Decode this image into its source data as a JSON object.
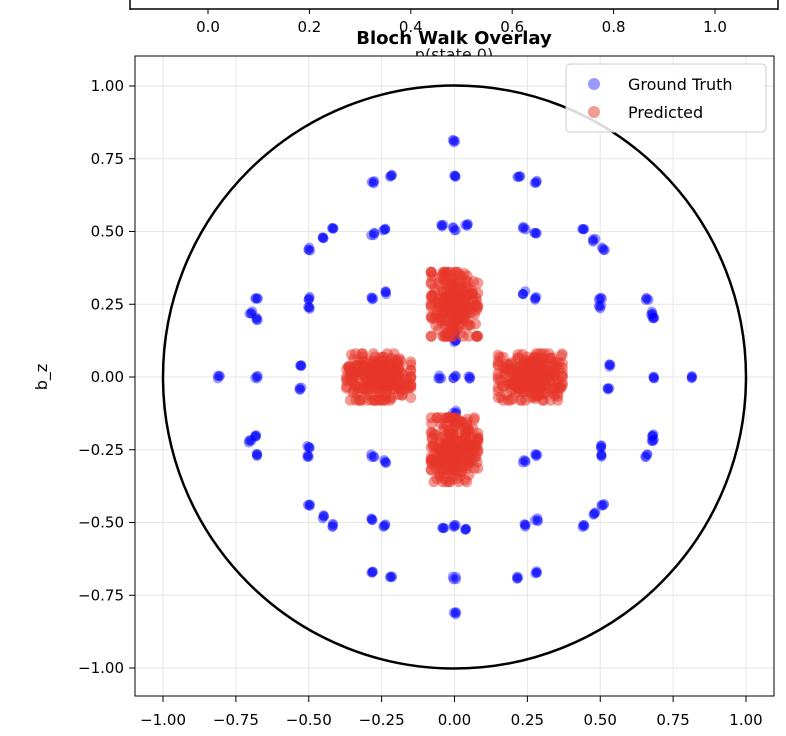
{
  "top_strip": {
    "tick_labels": [
      "0.0",
      "0.2",
      "0.4",
      "0.6",
      "0.8",
      "1.0"
    ],
    "xlabel": "p(state 0)"
  },
  "chart_data": {
    "type": "scatter",
    "title": "Bloch Walk Overlay",
    "xlabel": "",
    "ylabel": "b_z",
    "xlim": [
      -1.1,
      1.1
    ],
    "ylim": [
      -1.1,
      1.1
    ],
    "x_ticks": [
      "−1.00",
      "−0.75",
      "−0.50",
      "−0.25",
      "0.00",
      "0.25",
      "0.50",
      "0.75",
      "1.00"
    ],
    "y_ticks": [
      "1.00",
      "0.75",
      "0.50",
      "0.25",
      "0.00",
      "−0.25",
      "−0.50",
      "−0.75",
      "−1.00"
    ],
    "grid": true,
    "legend_position": "top-right",
    "unit_circle": {
      "center": [
        0,
        0
      ],
      "radius": 1.0,
      "color": "#000000"
    },
    "series": [
      {
        "name": "Ground Truth",
        "color": "#0000ff",
        "alpha": 0.4,
        "points": [
          [
            0.0,
            0.81
          ],
          [
            0.0,
            0.69
          ],
          [
            -0.28,
            0.67
          ],
          [
            -0.22,
            0.69
          ],
          [
            0.22,
            0.69
          ],
          [
            0.28,
            0.67
          ],
          [
            -0.5,
            0.44
          ],
          [
            -0.45,
            0.48
          ],
          [
            -0.42,
            0.51
          ],
          [
            0.44,
            0.51
          ],
          [
            0.48,
            0.47
          ],
          [
            0.51,
            0.44
          ],
          [
            -0.28,
            0.49
          ],
          [
            -0.24,
            0.51
          ],
          [
            0.24,
            0.51
          ],
          [
            0.28,
            0.49
          ],
          [
            -0.04,
            0.52
          ],
          [
            0.0,
            0.51
          ],
          [
            0.04,
            0.52
          ],
          [
            -0.68,
            0.27
          ],
          [
            -0.7,
            0.22
          ],
          [
            -0.68,
            0.2
          ],
          [
            -0.5,
            0.27
          ],
          [
            -0.5,
            0.24
          ],
          [
            -0.28,
            0.27
          ],
          [
            -0.24,
            0.29
          ],
          [
            0.24,
            0.29
          ],
          [
            0.28,
            0.27
          ],
          [
            0.5,
            0.27
          ],
          [
            0.5,
            0.24
          ],
          [
            0.66,
            0.27
          ],
          [
            0.68,
            0.22
          ],
          [
            0.68,
            0.2
          ],
          [
            0.0,
            0.15
          ],
          [
            0.0,
            0.12
          ],
          [
            -0.81,
            0.0
          ],
          [
            -0.68,
            0.0
          ],
          [
            -0.53,
            0.04
          ],
          [
            -0.53,
            -0.04
          ],
          [
            -0.05,
            0.0
          ],
          [
            0.0,
            0.0
          ],
          [
            0.05,
            0.0
          ],
          [
            0.53,
            0.04
          ],
          [
            0.53,
            -0.04
          ],
          [
            0.68,
            0.0
          ],
          [
            0.81,
            0.0
          ],
          [
            0.0,
            -0.15
          ],
          [
            0.0,
            -0.12
          ],
          [
            -0.68,
            -0.2
          ],
          [
            -0.7,
            -0.22
          ],
          [
            -0.68,
            -0.27
          ],
          [
            -0.5,
            -0.24
          ],
          [
            -0.5,
            -0.27
          ],
          [
            -0.28,
            -0.27
          ],
          [
            -0.24,
            -0.29
          ],
          [
            0.24,
            -0.29
          ],
          [
            0.28,
            -0.27
          ],
          [
            0.5,
            -0.24
          ],
          [
            0.5,
            -0.27
          ],
          [
            0.66,
            -0.27
          ],
          [
            0.68,
            -0.22
          ],
          [
            0.68,
            -0.2
          ],
          [
            -0.04,
            -0.52
          ],
          [
            0.0,
            -0.51
          ],
          [
            0.04,
            -0.52
          ],
          [
            -0.28,
            -0.49
          ],
          [
            -0.24,
            -0.51
          ],
          [
            0.24,
            -0.51
          ],
          [
            0.28,
            -0.49
          ],
          [
            -0.5,
            -0.44
          ],
          [
            -0.45,
            -0.48
          ],
          [
            -0.42,
            -0.51
          ],
          [
            0.44,
            -0.51
          ],
          [
            0.48,
            -0.47
          ],
          [
            0.51,
            -0.44
          ],
          [
            -0.28,
            -0.67
          ],
          [
            -0.22,
            -0.69
          ],
          [
            0.22,
            -0.69
          ],
          [
            0.28,
            -0.67
          ],
          [
            0.0,
            -0.69
          ],
          [
            0.0,
            -0.81
          ]
        ]
      },
      {
        "name": "Predicted",
        "color": "#e8362a",
        "alpha": 0.5,
        "clusters": [
          {
            "center": [
              0.0,
              0.25
            ],
            "spread": [
              0.08,
              0.11
            ]
          },
          {
            "center": [
              -0.26,
              0.0
            ],
            "spread": [
              0.11,
              0.08
            ]
          },
          {
            "center": [
              0.26,
              0.0
            ],
            "spread": [
              0.11,
              0.08
            ]
          },
          {
            "center": [
              0.0,
              -0.25
            ],
            "spread": [
              0.08,
              0.11
            ]
          }
        ]
      }
    ]
  }
}
